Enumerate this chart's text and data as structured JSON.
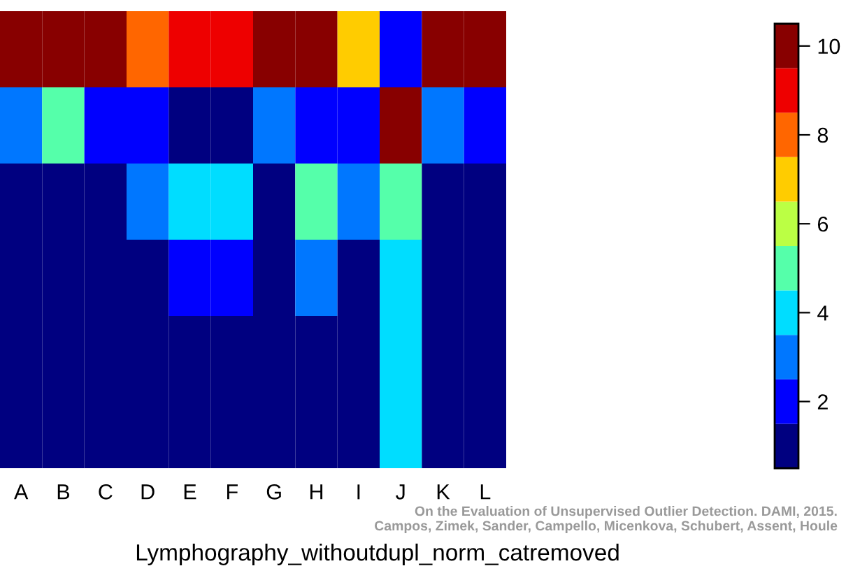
{
  "chart_data": {
    "type": "heatmap",
    "xlabel": "Lymphography_withoutdupl_norm_catremoved",
    "categories": [
      "A",
      "B",
      "C",
      "D",
      "E",
      "F",
      "G",
      "H",
      "I",
      "J",
      "K",
      "L"
    ],
    "y_categories": [
      null,
      null,
      null,
      null,
      null,
      null
    ],
    "cells": [
      [
        10,
        10,
        10,
        8,
        9,
        9,
        10,
        10,
        7,
        2,
        10,
        10
      ],
      [
        3,
        5,
        2,
        2,
        1,
        1,
        3,
        2,
        2,
        10,
        3,
        2
      ],
      [
        1,
        1,
        1,
        3,
        4,
        4,
        1,
        5,
        3,
        5,
        1,
        1
      ],
      [
        1,
        1,
        1,
        1,
        2,
        2,
        1,
        3,
        1,
        4,
        1,
        1
      ],
      [
        1,
        1,
        1,
        1,
        1,
        1,
        1,
        1,
        1,
        4,
        1,
        1
      ],
      [
        1,
        1,
        1,
        1,
        1,
        1,
        1,
        1,
        1,
        4,
        1,
        1
      ]
    ],
    "colors": [
      "#000080",
      "#0000ff",
      "#0077ff",
      "#00ddff",
      "#55ffaa",
      "#bbff44",
      "#ffcc00",
      "#ff6600",
      "#ee0000",
      "#880000"
    ],
    "clim": [
      0.5,
      10.5
    ],
    "cticks": [
      2,
      4,
      6,
      8,
      10
    ],
    "annotations": [
      "On the Evaluation of Unsupervised Outlier Detection. DAMI, 2015.\nCampos, Zimek, Sander, Campello, Micenkova, Schubert, Assent, Houle"
    ]
  }
}
